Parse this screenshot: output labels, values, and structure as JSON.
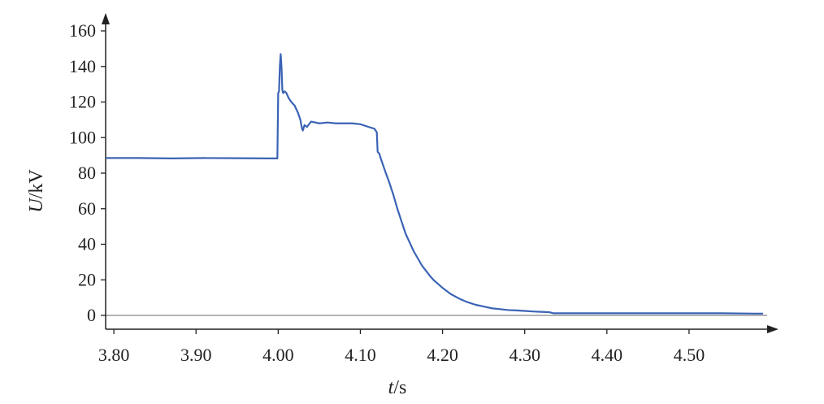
{
  "chart_data": {
    "type": "line",
    "title": "",
    "xlabel_var": "t",
    "xlabel_unit": "/s",
    "ylabel_var": "U",
    "ylabel_unit": "/kV",
    "xlim": [
      3.79,
      4.595
    ],
    "ylim": [
      0,
      160
    ],
    "x_ticks": [
      3.8,
      3.9,
      4.0,
      4.1,
      4.2,
      4.3,
      4.4,
      4.5
    ],
    "x_tick_labels": [
      "3.80",
      "3.90",
      "4.00",
      "4.10",
      "4.20",
      "4.30",
      "4.40",
      "4.50"
    ],
    "y_ticks": [
      0,
      20,
      40,
      60,
      80,
      100,
      120,
      140,
      160
    ],
    "y_tick_labels": [
      "0",
      "20",
      "40",
      "60",
      "80",
      "100",
      "120",
      "140",
      "160"
    ],
    "grid": false,
    "line_color": "#3b63b5",
    "series": [
      {
        "x": [
          3.79,
          3.83,
          3.87,
          3.91,
          3.95,
          3.99,
          3.999,
          4.0,
          4.001,
          4.002,
          4.003,
          4.004,
          4.005,
          4.006,
          4.008,
          4.01,
          4.013,
          4.016,
          4.02,
          4.024,
          4.027,
          4.029,
          4.03,
          4.032,
          4.035,
          4.04,
          4.05,
          4.06,
          4.07,
          4.08,
          4.09,
          4.1,
          4.11,
          4.117,
          4.12,
          4.121,
          4.123,
          4.125,
          4.128,
          4.131,
          4.135,
          4.14,
          4.145,
          4.15,
          4.155,
          4.16,
          4.165,
          4.17,
          4.175,
          4.18,
          4.185,
          4.19,
          4.195,
          4.2,
          4.21,
          4.22,
          4.23,
          4.24,
          4.25,
          4.26,
          4.27,
          4.28,
          4.29,
          4.3,
          4.31,
          4.32,
          4.33,
          4.335,
          4.34,
          4.38,
          4.42,
          4.46,
          4.5,
          4.54,
          4.58,
          4.59
        ],
        "y": [
          88.5,
          88.5,
          88.3,
          88.5,
          88.4,
          88.3,
          88.3,
          125,
          126,
          140,
          147,
          140,
          127,
          125,
          126,
          125,
          122,
          120,
          118,
          114,
          110,
          105,
          104,
          107,
          106,
          109,
          108,
          108.5,
          108,
          108,
          108,
          107.5,
          106,
          105,
          103,
          92,
          91,
          88,
          84,
          80,
          75,
          68,
          60,
          53,
          46,
          41,
          36,
          32,
          28,
          25,
          22,
          19.5,
          17.5,
          15.5,
          12,
          9.5,
          7.5,
          6,
          5,
          4,
          3.5,
          3,
          2.8,
          2.5,
          2.2,
          2,
          1.8,
          1.2,
          1.2,
          1.2,
          1.2,
          1.2,
          1.2,
          1.2,
          1.0,
          1.0
        ]
      }
    ]
  }
}
